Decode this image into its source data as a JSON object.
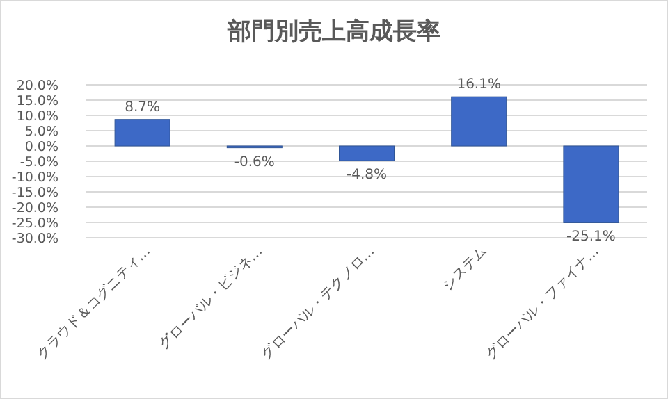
{
  "chart_data": {
    "type": "bar",
    "title": "部門別売上高成長率",
    "categories": [
      "クラウド＆コグニティ…",
      "グローバル・ビジネ…",
      "グローバル・テクノロ…",
      "システム",
      "グローバル・ファイナ…"
    ],
    "values": [
      8.7,
      -0.6,
      -4.8,
      16.1,
      -25.1
    ],
    "value_labels": [
      "8.7%",
      "-0.6%",
      "-4.8%",
      "16.1%",
      "-25.1%"
    ],
    "color": "#3d69c6",
    "ylim": [
      -30,
      20
    ],
    "yticks": [
      {
        "value": -30,
        "label": "-30.0%"
      },
      {
        "value": -25,
        "label": "-25.0%"
      },
      {
        "value": -20,
        "label": "-20.0%"
      },
      {
        "value": -15,
        "label": "-15.0%"
      },
      {
        "value": -10,
        "label": "-10.0%"
      },
      {
        "value": -5,
        "label": "-5.0%"
      },
      {
        "value": 0,
        "label": "0.0%"
      },
      {
        "value": 5,
        "label": "5.0%"
      },
      {
        "value": 10,
        "label": "10.0%"
      },
      {
        "value": 15,
        "label": "15.0%"
      },
      {
        "value": 20,
        "label": "20.0%"
      }
    ],
    "grid": "y"
  }
}
